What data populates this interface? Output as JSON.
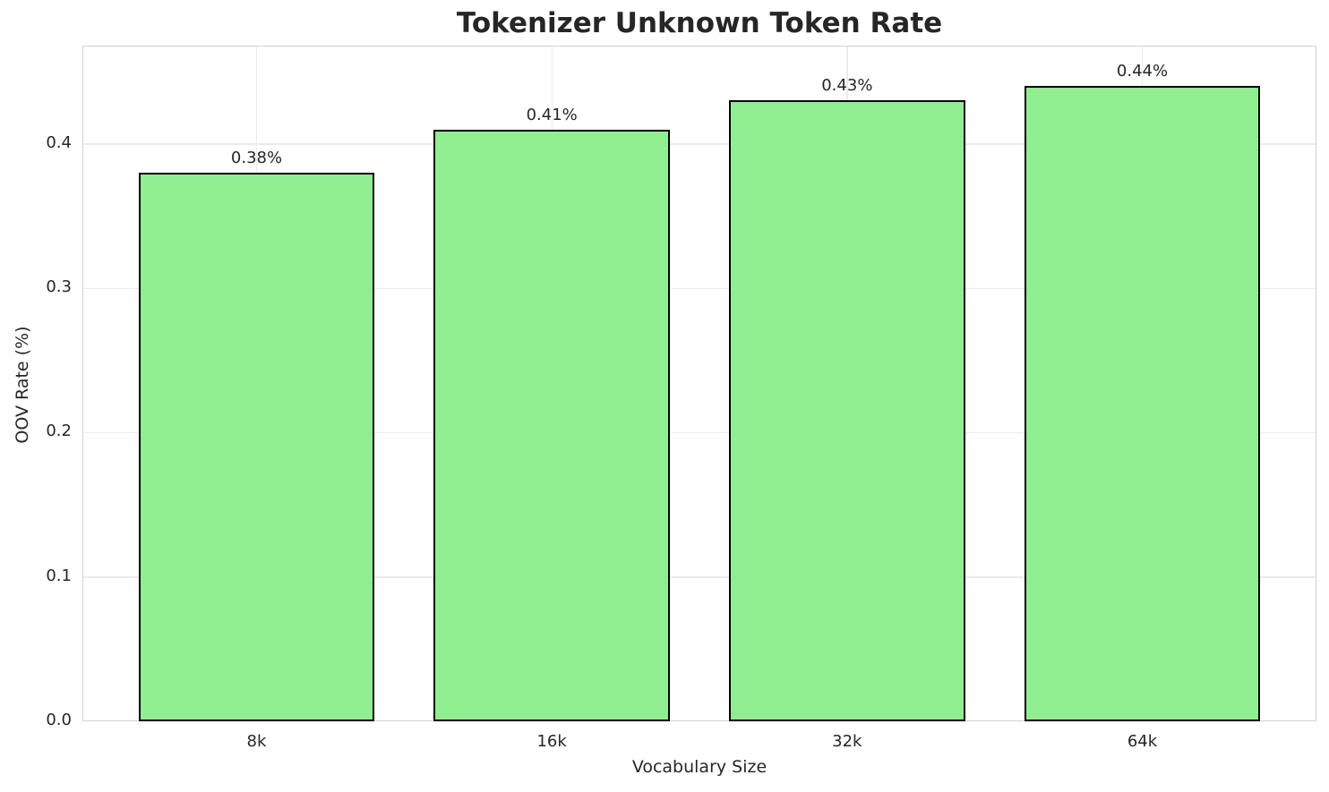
{
  "chart_data": {
    "type": "bar",
    "title": "Tokenizer Unknown Token Rate",
    "xlabel": "Vocabulary Size",
    "ylabel": "OOV Rate (%)",
    "categories": [
      "8k",
      "16k",
      "32k",
      "64k"
    ],
    "values": [
      0.38,
      0.41,
      0.43,
      0.44
    ],
    "bar_labels": [
      "0.38%",
      "0.41%",
      "0.43%",
      "0.44%"
    ],
    "yticks": [
      0.0,
      0.1,
      0.2,
      0.3,
      0.4
    ],
    "ytick_labels": [
      "0.0",
      "0.1",
      "0.2",
      "0.3",
      "0.4"
    ],
    "ylim": [
      0,
      0.468
    ],
    "grid": true,
    "legend_position": "none",
    "bar_color": "#90EE90",
    "bar_edge_color": "#000000",
    "text_color": "#262626",
    "grid_color": "#ebebeb",
    "spine_color": "#d2d2d2",
    "background_color": "#ffffff"
  }
}
